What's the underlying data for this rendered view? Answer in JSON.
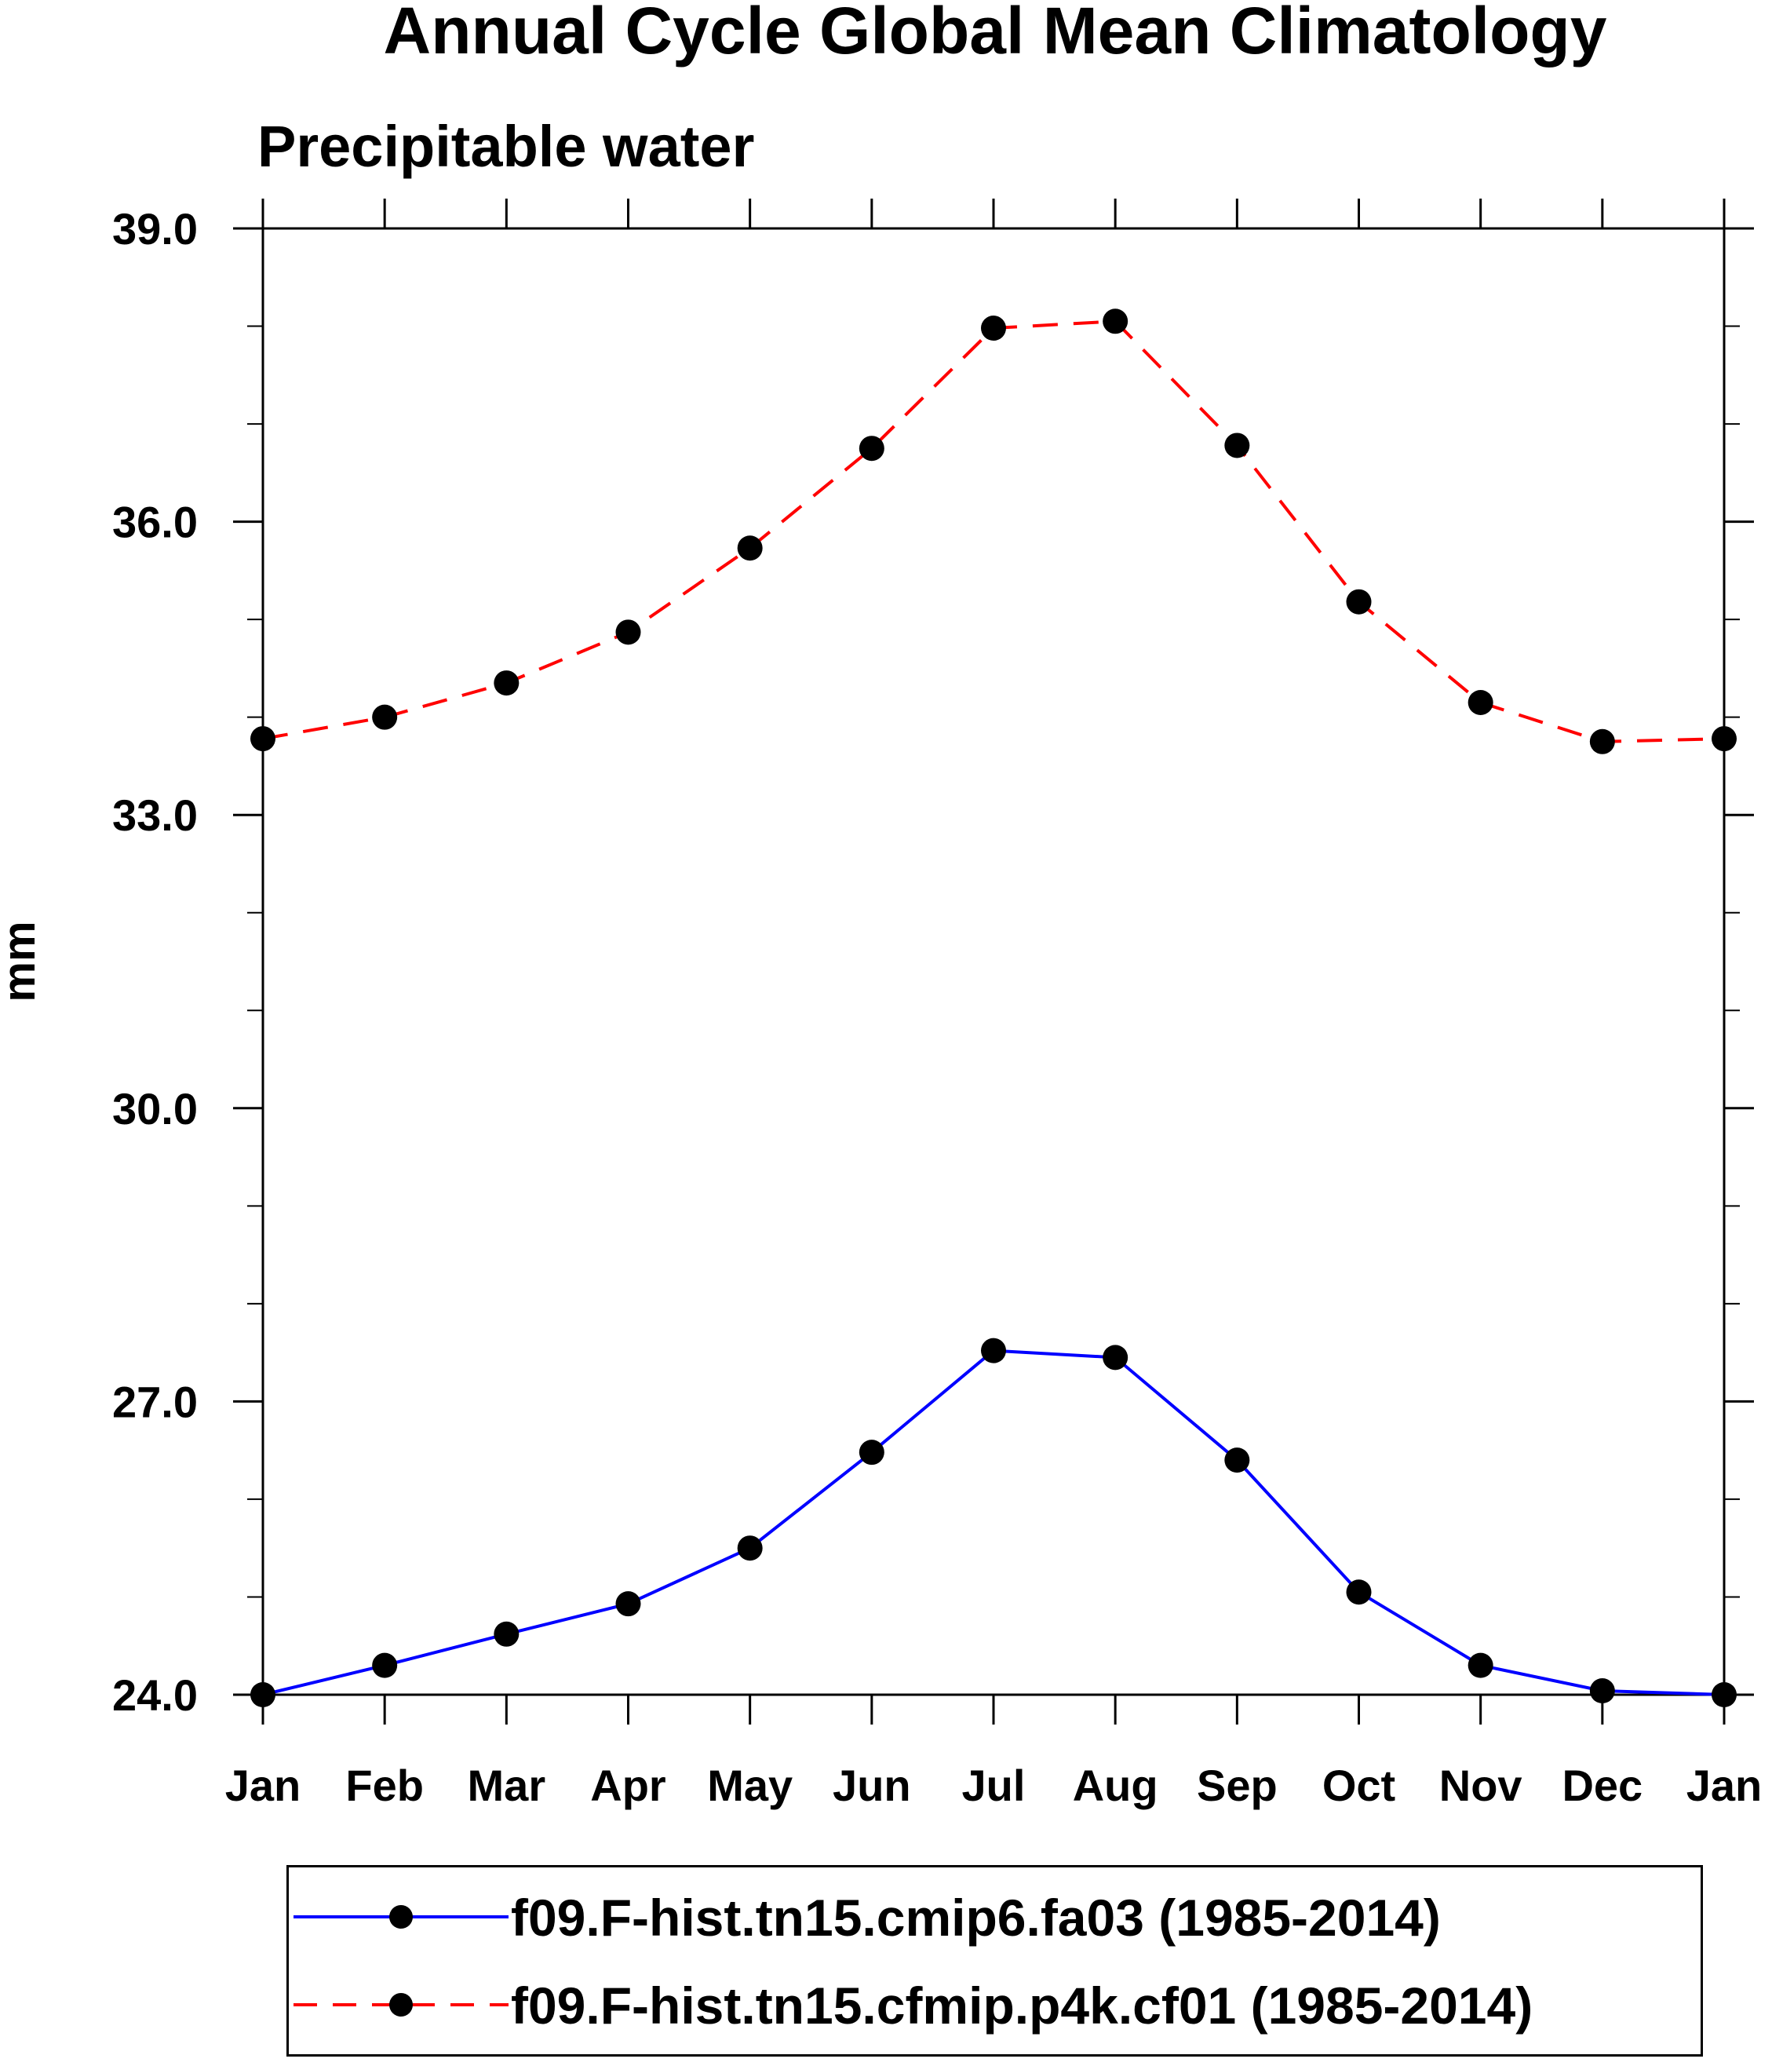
{
  "chart_data": {
    "type": "line",
    "title": "Annual Cycle Global Mean Climatology",
    "subtitle": "Precipitable water",
    "xlabel": "",
    "ylabel": "mm",
    "categories": [
      "Jan",
      "Feb",
      "Mar",
      "Apr",
      "May",
      "Jun",
      "Jul",
      "Aug",
      "Sep",
      "Oct",
      "Nov",
      "Dec",
      "Jan"
    ],
    "ylim": [
      24.0,
      39.0
    ],
    "yticks": [
      "24.0",
      "27.0",
      "30.0",
      "33.0",
      "36.0",
      "39.0"
    ],
    "ytick_values": [
      24,
      27,
      30,
      33,
      36,
      39
    ],
    "y_minor_step": 1,
    "grid": false,
    "legend_position": "bottom",
    "series": [
      {
        "name": "f09.F-hist.tn15.cmip6.fa03 (1985-2014)",
        "color": "#0000ff",
        "linestyle": "solid",
        "marker": "filled-circle",
        "values": [
          24.0,
          24.3,
          24.62,
          24.93,
          25.5,
          26.48,
          27.52,
          27.45,
          26.4,
          25.05,
          24.3,
          24.04,
          24.0
        ]
      },
      {
        "name": "f09.F-hist.tn15.cfmip.p4k.cf01 (1985-2014)",
        "color": "#ff0000",
        "linestyle": "dashed",
        "marker": "filled-circle",
        "values": [
          33.78,
          34.0,
          34.35,
          34.87,
          35.73,
          36.75,
          37.98,
          38.05,
          36.78,
          35.18,
          34.15,
          33.75,
          33.78
        ]
      }
    ]
  }
}
